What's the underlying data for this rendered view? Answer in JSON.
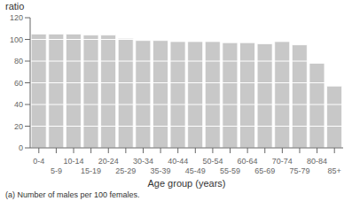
{
  "chart_data": {
    "type": "bar",
    "categories": [
      "0-4",
      "5-9",
      "10-14",
      "15-19",
      "20-24",
      "25-29",
      "30-34",
      "35-39",
      "40-44",
      "45-49",
      "50-54",
      "55-59",
      "60-64",
      "65-69",
      "70-74",
      "75-79",
      "80-84",
      "85+"
    ],
    "values": [
      105,
      105,
      105,
      104,
      104,
      101,
      99,
      99,
      98,
      98,
      98,
      97,
      97,
      96,
      98,
      95,
      78,
      57
    ],
    "color": "#c8c8c8",
    "ylabel": "ratio",
    "xlabel": "Age group (years)",
    "ylim": [
      0,
      120
    ],
    "yticks": [
      0,
      20,
      40,
      60,
      80,
      100,
      120
    ],
    "grid": true,
    "annotations": [
      "(a) Number of males per 100 females."
    ]
  }
}
